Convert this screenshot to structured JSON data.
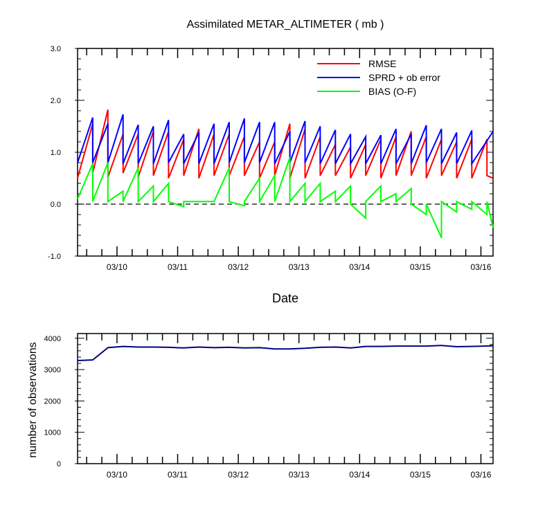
{
  "chart_data": [
    {
      "type": "line",
      "title": "Assimilated METAR_ALTIMETER ( mb )",
      "xlabel": "Date",
      "ylabel": "",
      "xlim": [
        9.35,
        16.2
      ],
      "ylim": [
        -1.0,
        3.0
      ],
      "yticks": [
        -1.0,
        0.0,
        1.0,
        2.0,
        3.0
      ],
      "ytick_labels": [
        "-1.0",
        "0.0",
        "1.0",
        "2.0",
        "3.0"
      ],
      "xticks": [
        10,
        11,
        12,
        13,
        14,
        15,
        16
      ],
      "xtick_labels": [
        "03/10",
        "03/11",
        "03/12",
        "03/13",
        "03/14",
        "03/15",
        "03/16"
      ],
      "zero_line": "dashed",
      "legend_position": "top-right",
      "series": [
        {
          "name": "RMSE",
          "color": "#ff0000",
          "points": [
            [
              9.35,
              0.5
            ],
            [
              9.6,
              1.55
            ],
            [
              9.6,
              0.6
            ],
            [
              9.85,
              1.82
            ],
            [
              9.85,
              0.52
            ],
            [
              10.1,
              1.35
            ],
            [
              10.1,
              0.6
            ],
            [
              10.35,
              1.35
            ],
            [
              10.35,
              0.52
            ],
            [
              10.6,
              1.4
            ],
            [
              10.6,
              0.55
            ],
            [
              10.85,
              1.4
            ],
            [
              10.85,
              0.5
            ],
            [
              11.1,
              1.25
            ],
            [
              11.1,
              0.55
            ],
            [
              11.35,
              1.45
            ],
            [
              11.35,
              0.5
            ],
            [
              11.6,
              1.35
            ],
            [
              11.6,
              0.55
            ],
            [
              11.85,
              1.35
            ],
            [
              11.85,
              0.55
            ],
            [
              12.1,
              1.3
            ],
            [
              12.1,
              0.55
            ],
            [
              12.35,
              1.2
            ],
            [
              12.35,
              0.5
            ],
            [
              12.6,
              1.2
            ],
            [
              12.6,
              0.55
            ],
            [
              12.85,
              1.55
            ],
            [
              12.85,
              0.5
            ],
            [
              13.1,
              1.45
            ],
            [
              13.1,
              0.5
            ],
            [
              13.35,
              1.3
            ],
            [
              13.35,
              0.55
            ],
            [
              13.6,
              1.15
            ],
            [
              13.6,
              0.55
            ],
            [
              13.85,
              1.1
            ],
            [
              13.85,
              0.5
            ],
            [
              14.1,
              1.15
            ],
            [
              14.1,
              0.55
            ],
            [
              14.35,
              1.25
            ],
            [
              14.35,
              0.5
            ],
            [
              14.6,
              1.3
            ],
            [
              14.6,
              0.55
            ],
            [
              14.85,
              1.4
            ],
            [
              14.85,
              0.55
            ],
            [
              15.1,
              1.3
            ],
            [
              15.1,
              0.5
            ],
            [
              15.35,
              1.25
            ],
            [
              15.35,
              0.55
            ],
            [
              15.6,
              1.2
            ],
            [
              15.6,
              0.5
            ],
            [
              15.85,
              1.25
            ],
            [
              15.85,
              0.5
            ],
            [
              16.1,
              1.25
            ],
            [
              16.1,
              0.55
            ],
            [
              16.2,
              0.5
            ]
          ]
        },
        {
          "name": "SPRD + ob error",
          "color": "#0000ff",
          "points": [
            [
              9.35,
              0.8
            ],
            [
              9.6,
              1.67
            ],
            [
              9.6,
              0.8
            ],
            [
              9.85,
              1.55
            ],
            [
              9.85,
              0.8
            ],
            [
              10.1,
              1.73
            ],
            [
              10.1,
              0.78
            ],
            [
              10.35,
              1.53
            ],
            [
              10.35,
              0.78
            ],
            [
              10.6,
              1.5
            ],
            [
              10.6,
              0.78
            ],
            [
              10.85,
              1.62
            ],
            [
              10.85,
              0.8
            ],
            [
              11.1,
              1.35
            ],
            [
              11.1,
              0.78
            ],
            [
              11.35,
              1.38
            ],
            [
              11.35,
              0.78
            ],
            [
              11.6,
              1.55
            ],
            [
              11.6,
              0.78
            ],
            [
              11.85,
              1.58
            ],
            [
              11.85,
              0.8
            ],
            [
              12.1,
              1.65
            ],
            [
              12.1,
              0.8
            ],
            [
              12.35,
              1.58
            ],
            [
              12.35,
              0.8
            ],
            [
              12.6,
              1.58
            ],
            [
              12.6,
              0.78
            ],
            [
              12.85,
              1.4
            ],
            [
              12.85,
              0.8
            ],
            [
              13.1,
              1.6
            ],
            [
              13.1,
              0.8
            ],
            [
              13.35,
              1.5
            ],
            [
              13.35,
              0.78
            ],
            [
              13.6,
              1.43
            ],
            [
              13.6,
              0.78
            ],
            [
              13.85,
              1.35
            ],
            [
              13.85,
              0.78
            ],
            [
              14.1,
              1.3
            ],
            [
              14.1,
              0.78
            ],
            [
              14.35,
              1.33
            ],
            [
              14.35,
              0.78
            ],
            [
              14.6,
              1.45
            ],
            [
              14.6,
              0.78
            ],
            [
              14.85,
              1.35
            ],
            [
              14.85,
              0.78
            ],
            [
              15.1,
              1.52
            ],
            [
              15.1,
              0.8
            ],
            [
              15.35,
              1.45
            ],
            [
              15.35,
              0.78
            ],
            [
              15.6,
              1.38
            ],
            [
              15.6,
              0.78
            ],
            [
              15.85,
              1.42
            ],
            [
              15.85,
              0.78
            ],
            [
              16.2,
              1.4
            ]
          ]
        },
        {
          "name": "BIAS (O-F)",
          "color": "#00ff00",
          "points": [
            [
              9.35,
              0.1
            ],
            [
              9.6,
              0.78
            ],
            [
              9.6,
              0.05
            ],
            [
              9.85,
              0.8
            ],
            [
              9.85,
              0.05
            ],
            [
              10.1,
              0.25
            ],
            [
              10.1,
              0.05
            ],
            [
              10.35,
              0.7
            ],
            [
              10.35,
              0.05
            ],
            [
              10.6,
              0.35
            ],
            [
              10.6,
              0.05
            ],
            [
              10.85,
              0.4
            ],
            [
              10.85,
              0.05
            ],
            [
              11.1,
              -0.05
            ],
            [
              11.1,
              0.05
            ],
            [
              11.35,
              0.05
            ],
            [
              11.35,
              0.05
            ],
            [
              11.6,
              0.05
            ],
            [
              11.85,
              0.7
            ],
            [
              11.85,
              0.05
            ],
            [
              12.1,
              -0.03
            ],
            [
              12.1,
              0.05
            ],
            [
              12.35,
              0.5
            ],
            [
              12.35,
              0.05
            ],
            [
              12.6,
              0.55
            ],
            [
              12.6,
              0.05
            ],
            [
              12.85,
              0.9
            ],
            [
              12.85,
              0.05
            ],
            [
              13.1,
              0.4
            ],
            [
              13.1,
              0.05
            ],
            [
              13.35,
              0.4
            ],
            [
              13.35,
              0.05
            ],
            [
              13.6,
              0.25
            ],
            [
              13.6,
              0.05
            ],
            [
              13.85,
              0.35
            ],
            [
              13.85,
              0.0
            ],
            [
              14.1,
              -0.27
            ],
            [
              14.1,
              0.05
            ],
            [
              14.35,
              0.35
            ],
            [
              14.35,
              0.05
            ],
            [
              14.6,
              0.2
            ],
            [
              14.6,
              0.05
            ],
            [
              14.85,
              0.3
            ],
            [
              14.85,
              0.0
            ],
            [
              15.1,
              -0.2
            ],
            [
              15.1,
              0.0
            ],
            [
              15.35,
              -0.65
            ],
            [
              15.35,
              0.05
            ],
            [
              15.6,
              -0.15
            ],
            [
              15.6,
              0.05
            ],
            [
              15.85,
              -0.1
            ],
            [
              15.85,
              0.05
            ],
            [
              16.1,
              -0.2
            ],
            [
              16.1,
              0.05
            ],
            [
              16.2,
              -0.45
            ]
          ]
        }
      ]
    },
    {
      "type": "line",
      "title": "",
      "xlabel": "",
      "ylabel": "number of observations",
      "xlim": [
        9.35,
        16.2
      ],
      "ylim": [
        0,
        4150
      ],
      "yticks": [
        0,
        1000,
        2000,
        3000,
        4000
      ],
      "ytick_labels": [
        "0",
        "1000",
        "2000",
        "3000",
        "4000"
      ],
      "xticks": [
        10,
        11,
        12,
        13,
        14,
        15,
        16
      ],
      "xtick_labels": [
        "03/10",
        "03/11",
        "03/12",
        "03/13",
        "03/14",
        "03/15",
        "03/16"
      ],
      "series": [
        {
          "name": "number of observations",
          "color": "#000080",
          "points": [
            [
              9.35,
              3290
            ],
            [
              9.6,
              3310
            ],
            [
              9.85,
              3700
            ],
            [
              10.1,
              3740
            ],
            [
              10.35,
              3720
            ],
            [
              10.6,
              3720
            ],
            [
              10.85,
              3710
            ],
            [
              11.1,
              3690
            ],
            [
              11.35,
              3720
            ],
            [
              11.6,
              3700
            ],
            [
              11.85,
              3710
            ],
            [
              12.1,
              3690
            ],
            [
              12.35,
              3700
            ],
            [
              12.6,
              3660
            ],
            [
              12.85,
              3660
            ],
            [
              13.1,
              3680
            ],
            [
              13.35,
              3710
            ],
            [
              13.6,
              3720
            ],
            [
              13.85,
              3690
            ],
            [
              14.1,
              3740
            ],
            [
              14.35,
              3740
            ],
            [
              14.6,
              3750
            ],
            [
              14.85,
              3750
            ],
            [
              15.1,
              3750
            ],
            [
              15.35,
              3770
            ],
            [
              15.6,
              3730
            ],
            [
              15.85,
              3740
            ],
            [
              16.2,
              3760
            ]
          ]
        }
      ]
    }
  ]
}
